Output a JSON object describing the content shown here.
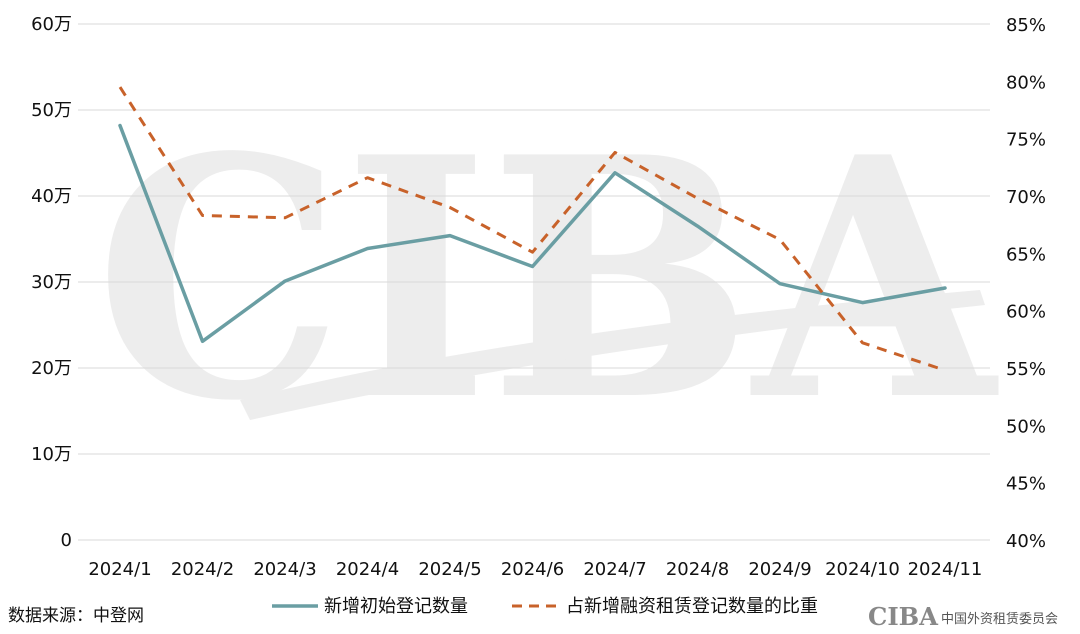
{
  "chart_data": {
    "type": "line",
    "categories": [
      "2024/1",
      "2024/2",
      "2024/3",
      "2024/4",
      "2024/5",
      "2024/6",
      "2024/7",
      "2024/8",
      "2024/9",
      "2024/10",
      "2024/11"
    ],
    "series": [
      {
        "name": "新增初始登记数量",
        "axis": "left",
        "style": "solid",
        "color": "#6a9ea3",
        "values": [
          48.2,
          23.1,
          30.1,
          33.9,
          35.4,
          31.8,
          42.7,
          36.5,
          29.8,
          27.6,
          29.3
        ]
      },
      {
        "name": "占新增融资租赁登记数量的比重",
        "axis": "right",
        "style": "dashed",
        "color": "#c8622a",
        "values": [
          79.5,
          68.3,
          68.1,
          71.6,
          69.0,
          65.1,
          73.8,
          69.8,
          66.2,
          57.2,
          54.8
        ]
      }
    ],
    "left_axis": {
      "min": 0,
      "max": 60,
      "ticks": [
        "0",
        "10万",
        "20万",
        "30万",
        "40万",
        "50万",
        "60万"
      ]
    },
    "right_axis": {
      "min": 40,
      "max": 85,
      "ticks": [
        "40%",
        "45%",
        "50%",
        "55%",
        "60%",
        "65%",
        "70%",
        "75%",
        "80%",
        "85%"
      ]
    },
    "grid": "horizontal",
    "legend_position": "bottom"
  },
  "footer": {
    "source": "数据来源：中登网",
    "brand_logo": "CIBA",
    "brand_name": "中国外资租赁委员会"
  },
  "watermark": {
    "text": "CIBA",
    "color": "#ededed"
  }
}
